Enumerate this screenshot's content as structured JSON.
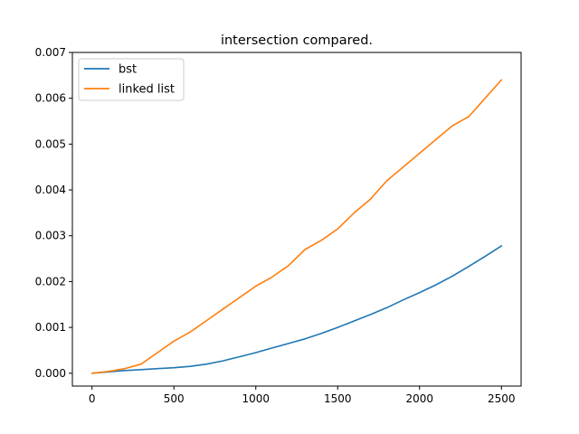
{
  "chart_data": {
    "type": "line",
    "title": "intersection compared.",
    "xlabel": "",
    "ylabel": "",
    "xlim": [
      -120,
      2620
    ],
    "ylim": [
      -0.00028,
      0.007
    ],
    "x_ticks": [
      0,
      500,
      1000,
      1500,
      2000,
      2500
    ],
    "x_tick_labels": [
      "0",
      "500",
      "1000",
      "1500",
      "2000",
      "2500"
    ],
    "y_ticks": [
      0.0,
      0.001,
      0.002,
      0.003,
      0.004,
      0.005,
      0.006,
      0.007
    ],
    "y_tick_labels": [
      "0.000",
      "0.001",
      "0.002",
      "0.003",
      "0.004",
      "0.005",
      "0.006",
      "0.007"
    ],
    "grid": false,
    "legend_position": "upper-left",
    "series": [
      {
        "name": "bst",
        "color": "#1f77b4",
        "x": [
          0,
          100,
          200,
          300,
          400,
          500,
          600,
          700,
          800,
          900,
          1000,
          1100,
          1200,
          1300,
          1400,
          1500,
          1600,
          1700,
          1800,
          1900,
          2000,
          2100,
          2200,
          2300,
          2400,
          2500
        ],
        "y": [
          0.0,
          3e-05,
          6e-05,
          8e-05,
          0.0001,
          0.00012,
          0.00015,
          0.0002,
          0.00027,
          0.00036,
          0.00045,
          0.00055,
          0.00065,
          0.00075,
          0.00087,
          0.001,
          0.00114,
          0.00128,
          0.00143,
          0.0016,
          0.00176,
          0.00193,
          0.00212,
          0.00233,
          0.00255,
          0.00278
        ]
      },
      {
        "name": "linked list",
        "color": "#ff7f0e",
        "x": [
          0,
          100,
          200,
          300,
          400,
          500,
          600,
          700,
          800,
          900,
          1000,
          1100,
          1200,
          1300,
          1400,
          1500,
          1600,
          1700,
          1800,
          1900,
          2000,
          2100,
          2200,
          2300,
          2400,
          2500
        ],
        "y": [
          0.0,
          4e-05,
          0.0001,
          0.0002,
          0.00045,
          0.0007,
          0.0009,
          0.00115,
          0.0014,
          0.00165,
          0.0019,
          0.0021,
          0.00235,
          0.0027,
          0.0029,
          0.00315,
          0.0035,
          0.0038,
          0.0042,
          0.0045,
          0.0048,
          0.0051,
          0.0054,
          0.0056,
          0.006,
          0.0064
        ]
      }
    ]
  }
}
